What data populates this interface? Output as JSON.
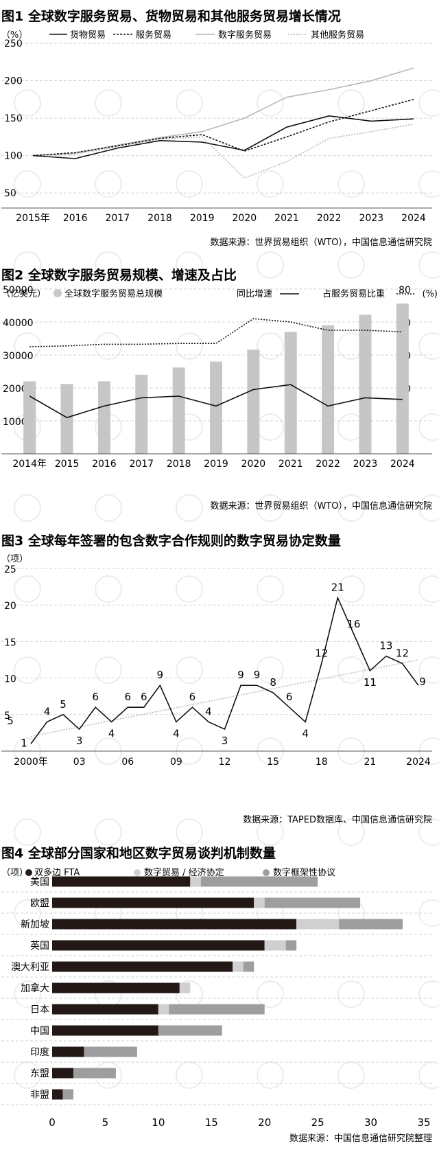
{
  "chart_data": [
    {
      "type": "line",
      "title": "图1 全球数字服务贸易、货物贸易和其他服务贸易增长情况",
      "unit_label": "（%）",
      "x": [
        "2015年",
        "2016",
        "2017",
        "2018",
        "2019",
        "2020",
        "2021",
        "2022",
        "2023",
        "2024"
      ],
      "ylim": [
        30,
        250
      ],
      "yticks": [
        50,
        100,
        150,
        200,
        250
      ],
      "series": [
        {
          "name": "货物贸易",
          "style": "solid-black",
          "values": [
            100,
            96,
            110,
            120,
            118,
            107,
            138,
            153,
            146,
            149
          ]
        },
        {
          "name": "服务贸易",
          "style": "dashed-black",
          "values": [
            100,
            104,
            113,
            123,
            128,
            106,
            125,
            145,
            160,
            175
          ]
        },
        {
          "name": "数字服务贸易",
          "style": "solid-gray",
          "values": [
            100,
            103,
            114,
            124,
            132,
            150,
            178,
            188,
            200,
            217
          ]
        },
        {
          "name": "其他服务贸易",
          "style": "dotted-gray",
          "values": [
            100,
            102,
            112,
            122,
            125,
            70,
            92,
            123,
            132,
            142
          ]
        }
      ],
      "source": "数据来源：世界贸易组织（WTO），中国信息通信研究院"
    },
    {
      "type": "bar",
      "title": "图2 全球数字服务贸易规模、增速及占比",
      "left_unit": "（亿美元）",
      "right_unit": "(%)",
      "bar_legend": "全球数字服务贸易总规模",
      "line_legend": "同比增速",
      "dash_legend": "占服务贸易比重",
      "categories": [
        "2014年",
        "2015",
        "2016",
        "2017",
        "2018",
        "2019",
        "2020",
        "2021",
        "2022",
        "2023",
        "2024"
      ],
      "bars": [
        22000,
        21200,
        22000,
        24000,
        26200,
        28000,
        31600,
        37000,
        39000,
        42200,
        45600
      ],
      "ylim_left": [
        0,
        50000
      ],
      "yticks_left": [
        10000,
        20000,
        30000,
        40000,
        50000
      ],
      "ylim_right": [
        -20,
        80
      ],
      "yticks_right": [
        0,
        20,
        40,
        60,
        80
      ],
      "growth_rate": [
        15,
        2,
        9,
        14,
        15,
        9,
        19,
        22,
        9,
        14,
        13
      ],
      "share_of_services": [
        45,
        45.5,
        46.5,
        46.5,
        47,
        47,
        62,
        60,
        55,
        55,
        54
      ],
      "source": "数据来源：世界贸易组织（WTO），中国信息通信研究院"
    },
    {
      "type": "line",
      "title": "图3 全球每年签署的包含数字合作规则的数字贸易协定数量",
      "unit_label": "（项）",
      "x": [
        "2000",
        "2001",
        "2002",
        "2003",
        "2004",
        "2005",
        "2006",
        "2007",
        "2008",
        "2009",
        "2010",
        "2011",
        "2012",
        "2013",
        "2014",
        "2015",
        "2016",
        "2017",
        "2018",
        "2019",
        "2020",
        "2021",
        "2022",
        "2023",
        "2024"
      ],
      "x_tick_labels": [
        [
          "2000年",
          0
        ],
        [
          "03",
          3
        ],
        [
          "06",
          6
        ],
        [
          "09",
          9
        ],
        [
          "12",
          12
        ],
        [
          "15",
          15
        ],
        [
          "18",
          18
        ],
        [
          "21",
          21
        ],
        [
          "2024",
          24
        ]
      ],
      "values": [
        1,
        4,
        5,
        3,
        6,
        4,
        6,
        6,
        9,
        4,
        6,
        4,
        3,
        9,
        9,
        8,
        6,
        4,
        12,
        21,
        16,
        11,
        13,
        12,
        9
      ],
      "data_labels": [
        "1",
        "4",
        "5",
        "3",
        "6",
        "4",
        "6",
        "6",
        "9",
        "4",
        "6",
        "4",
        "3",
        "9",
        "9",
        "8",
        "6",
        "4",
        "12",
        "21",
        "16",
        "11",
        "13",
        "12",
        "9"
      ],
      "extra_label": "5",
      "trend": [
        2,
        12.5
      ],
      "ylim": [
        0,
        25
      ],
      "yticks": [
        5,
        10,
        15,
        20,
        25
      ],
      "source": "数据来源：TAPED数据库、中国信息通信研究院"
    },
    {
      "type": "bar",
      "orientation": "horizontal-stacked",
      "title": "图4 全球部分国家和地区数字贸易谈判机制数量",
      "unit_label": "（项）",
      "categories": [
        "美国",
        "欧盟",
        "新加坡",
        "英国",
        "澳大利亚",
        "加拿大",
        "日本",
        "中国",
        "印度",
        "东盟",
        "非盟"
      ],
      "series": [
        {
          "name": "双多边 FTA",
          "color": "#231815",
          "values": [
            13,
            19,
            23,
            20,
            17,
            12,
            10,
            10,
            3,
            2,
            1
          ]
        },
        {
          "name": "数字贸易 / 经济协定",
          "color": "#d0d0d0",
          "values": [
            1,
            1,
            4,
            2,
            1,
            1,
            1,
            0,
            0,
            0,
            0
          ]
        },
        {
          "name": "数字框架性协议",
          "color": "#9e9e9e",
          "values": [
            11,
            9,
            6,
            1,
            1,
            0,
            9,
            6,
            5,
            4,
            1
          ]
        }
      ],
      "xlim": [
        0,
        35
      ],
      "xticks": [
        0,
        5,
        10,
        15,
        20,
        25,
        30,
        35
      ],
      "source": "数据来源：中国信息通信研究院整理"
    }
  ]
}
